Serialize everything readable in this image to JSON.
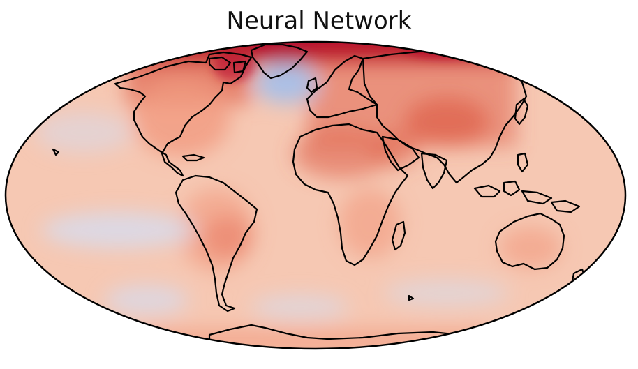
{
  "title": "Neural Network",
  "map": {
    "projection": "mollweide",
    "colormap": "coolwarm",
    "colors": {
      "ocean_base": "#f6c8b3",
      "warm_strong": "#b40426",
      "warm_mid": "#e0654f",
      "warm_light": "#f19a7f",
      "cool_light": "#d6dcef",
      "cool_mid": "#aabfe6",
      "coastline": "#000000",
      "frame": "#000000"
    }
  }
}
